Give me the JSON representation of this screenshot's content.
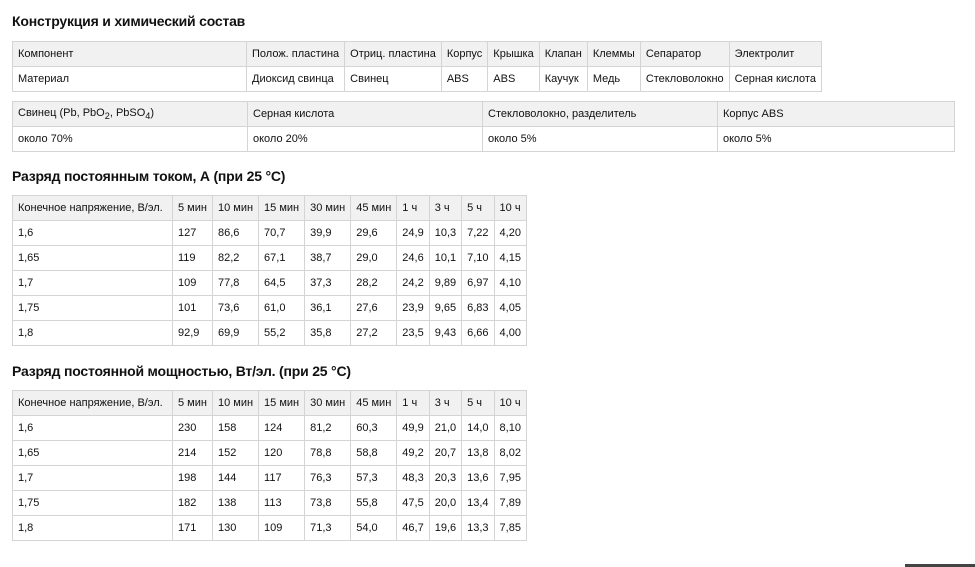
{
  "composition": {
    "title": "Конструкция и химический состав",
    "header": [
      "Компонент",
      "Полож. пластина",
      "Отриц. пластина",
      "Корпус",
      "Крышка",
      "Клапан",
      "Клеммы",
      "Сепаратор",
      "Электролит"
    ],
    "row": [
      "Материал",
      "Диоксид свинца",
      "Свинец",
      "ABS",
      "ABS",
      "Каучук",
      "Медь",
      "Стекловолокно",
      "Серная кислота"
    ]
  },
  "chemistry": {
    "header": [
      "Свинец (Pb, PbO",
      "Серная кислота",
      "Стекловолокно, разделитель",
      "Корпус ABS"
    ],
    "header_parts": {
      "pb_sub1": "2",
      "pb_mid": ", PbSO",
      "pb_sub2": "4",
      "pb_end": ")"
    },
    "row": [
      "около 70%",
      "около 20%",
      "около 5%",
      "около 5%"
    ]
  },
  "dc_discharge": {
    "title": "Разряд постоянным током, А (при 25 °C)",
    "header": [
      "Конечное напряжение, В/эл.",
      "5 мин",
      "10 мин",
      "15 мин",
      "30 мин",
      "45 мин",
      "1 ч",
      "3 ч",
      "5 ч",
      "10 ч"
    ],
    "rows": [
      [
        "1,6",
        "127",
        "86,6",
        "70,7",
        "39,9",
        "29,6",
        "24,9",
        "10,3",
        "7,22",
        "4,20"
      ],
      [
        "1,65",
        "119",
        "82,2",
        "67,1",
        "38,7",
        "29,0",
        "24,6",
        "10,1",
        "7,10",
        "4,15"
      ],
      [
        "1,7",
        "109",
        "77,8",
        "64,5",
        "37,3",
        "28,2",
        "24,2",
        "9,89",
        "6,97",
        "4,10"
      ],
      [
        "1,75",
        "101",
        "73,6",
        "61,0",
        "36,1",
        "27,6",
        "23,9",
        "9,65",
        "6,83",
        "4,05"
      ],
      [
        "1,8",
        "92,9",
        "69,9",
        "55,2",
        "35,8",
        "27,2",
        "23,5",
        "9,43",
        "6,66",
        "4,00"
      ]
    ]
  },
  "power_discharge": {
    "title": "Разряд постоянной мощностью, Вт/эл. (при 25 °C)",
    "header": [
      "Конечное напряжение, В/эл.",
      "5 мин",
      "10 мин",
      "15 мин",
      "30 мин",
      "45 мин",
      "1 ч",
      "3 ч",
      "5 ч",
      "10 ч"
    ],
    "rows": [
      [
        "1,6",
        "230",
        "158",
        "124",
        "81,2",
        "60,3",
        "49,9",
        "21,0",
        "14,0",
        "8,10"
      ],
      [
        "1,65",
        "214",
        "152",
        "120",
        "78,8",
        "58,8",
        "49,2",
        "20,7",
        "13,8",
        "8,02"
      ],
      [
        "1,7",
        "198",
        "144",
        "117",
        "76,3",
        "57,3",
        "48,3",
        "20,3",
        "13,6",
        "7,95"
      ],
      [
        "1,75",
        "182",
        "138",
        "113",
        "73,8",
        "55,8",
        "47,5",
        "20,0",
        "13,4",
        "7,89"
      ],
      [
        "1,8",
        "171",
        "130",
        "109",
        "71,3",
        "54,0",
        "46,7",
        "19,6",
        "13,3",
        "7,85"
      ]
    ]
  }
}
